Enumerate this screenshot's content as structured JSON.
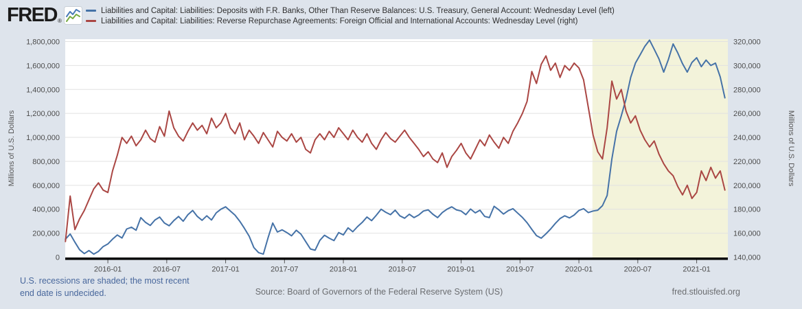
{
  "header": {
    "logo_text": "FRED",
    "logo_registered": "®",
    "logo_icon": "line-chart-icon",
    "logo_icon_colors": {
      "blue": "#4a7bb7",
      "green": "#77aa43"
    },
    "legend": [
      {
        "label": "Liabilities and Capital: Liabilities: Deposits with F.R. Banks, Other Than Reserve Balances: U.S. Treasury, General Account: Wednesday Level (left)",
        "color": "#4572a7"
      },
      {
        "label": "Liabilities and Capital: Liabilities: Reverse Repurchase Agreements: Foreign Official and International Accounts: Wednesday Level (right)",
        "color": "#aa4643"
      }
    ]
  },
  "chart_data": {
    "type": "line",
    "plot_bg": "#ffffff",
    "grid_color": "#e2e2e2",
    "recession_shading": {
      "label": "U.S. recession",
      "start": "2020-02",
      "start_decimal_year": 2020.115,
      "end": "undecided (extends to right edge)",
      "color": "#f3f3da"
    },
    "x_range_decimal_years": [
      2015.638,
      2021.265
    ],
    "x_ticks": [
      {
        "label": "2016-01",
        "x": 2016.0
      },
      {
        "label": "2016-07",
        "x": 2016.5
      },
      {
        "label": "2017-01",
        "x": 2017.0
      },
      {
        "label": "2017-07",
        "x": 2017.5
      },
      {
        "label": "2018-01",
        "x": 2018.0
      },
      {
        "label": "2018-07",
        "x": 2018.5
      },
      {
        "label": "2019-01",
        "x": 2019.0
      },
      {
        "label": "2019-07",
        "x": 2019.5
      },
      {
        "label": "2020-01",
        "x": 2020.0
      },
      {
        "label": "2020-07",
        "x": 2020.5
      },
      {
        "label": "2021-01",
        "x": 2021.0
      }
    ],
    "left_axis": {
      "title": "Millions of U.S. Dollars",
      "min": 0,
      "max": 1800000,
      "step": 200000,
      "labels": [
        "0",
        "200,000",
        "400,000",
        "600,000",
        "800,000",
        "1,000,000",
        "1,200,000",
        "1,400,000",
        "1,600,000",
        "1,800,000"
      ]
    },
    "right_axis": {
      "title": "Millions of U.S. Dollars",
      "min": 140000,
      "max": 320000,
      "step": 20000,
      "labels": [
        "140,000",
        "160,000",
        "180,000",
        "200,000",
        "220,000",
        "240,000",
        "260,000",
        "280,000",
        "300,000",
        "320,000"
      ]
    },
    "series": [
      {
        "name": "Liabilities and Capital: Liabilities: Deposits with F.R. Banks, Other Than Reserve Balances: U.S. Treasury, General Account: Wednesday Level",
        "axis": "left",
        "color": "#4572a7",
        "x_start": 2015.64,
        "x_step": 0.04,
        "values": [
          150000,
          193000,
          125000,
          62000,
          30000,
          55000,
          25000,
          48000,
          88000,
          110000,
          150000,
          185000,
          160000,
          235000,
          250000,
          225000,
          330000,
          290000,
          265000,
          310000,
          335000,
          285000,
          262000,
          305000,
          340000,
          300000,
          355000,
          390000,
          340000,
          308000,
          345000,
          310000,
          370000,
          400000,
          420000,
          385000,
          350000,
          300000,
          240000,
          175000,
          80000,
          38000,
          25000,
          160000,
          285000,
          210000,
          228000,
          205000,
          178000,
          225000,
          192000,
          130000,
          68000,
          58000,
          140000,
          183000,
          158000,
          138000,
          205000,
          186000,
          245000,
          212000,
          255000,
          290000,
          335000,
          305000,
          350000,
          400000,
          375000,
          355000,
          392000,
          345000,
          325000,
          358000,
          330000,
          352000,
          385000,
          395000,
          358000,
          330000,
          372000,
          400000,
          420000,
          395000,
          385000,
          355000,
          402000,
          370000,
          392000,
          340000,
          330000,
          425000,
          395000,
          360000,
          388000,
          405000,
          368000,
          332000,
          288000,
          232000,
          180000,
          158000,
          195000,
          235000,
          282000,
          322000,
          345000,
          328000,
          352000,
          390000,
          405000,
          372000,
          385000,
          392000,
          430000,
          515000,
          820000,
          1050000,
          1180000,
          1320000,
          1500000,
          1620000,
          1690000,
          1760000,
          1812000,
          1735000,
          1655000,
          1545000,
          1650000,
          1780000,
          1705000,
          1615000,
          1545000,
          1625000,
          1665000,
          1590000,
          1645000,
          1600000,
          1620000,
          1505000,
          1330000
        ]
      },
      {
        "name": "Liabilities and Capital: Liabilities: Reverse Repurchase Agreements: Foreign Official and International Accounts: Wednesday Level",
        "axis": "right",
        "color": "#aa4643",
        "x_start": 2015.64,
        "x_step": 0.04,
        "values": [
          153000,
          191000,
          163000,
          172000,
          179000,
          188000,
          197000,
          202000,
          196000,
          194000,
          212000,
          225000,
          240000,
          235000,
          241000,
          233000,
          238000,
          246000,
          239000,
          236000,
          249000,
          241000,
          262000,
          248000,
          241000,
          237000,
          245000,
          252000,
          246000,
          250000,
          243000,
          256000,
          248000,
          252000,
          260000,
          248000,
          243000,
          252000,
          238000,
          246000,
          241000,
          235000,
          244000,
          238000,
          232000,
          245000,
          240000,
          237000,
          243000,
          236000,
          240000,
          230000,
          227000,
          238000,
          243000,
          238000,
          245000,
          240000,
          248000,
          243000,
          238000,
          246000,
          240000,
          236000,
          243000,
          235000,
          230000,
          238000,
          244000,
          239000,
          236000,
          241000,
          246000,
          240000,
          235000,
          230000,
          224000,
          228000,
          222000,
          219000,
          227000,
          215000,
          224000,
          229000,
          235000,
          227000,
          222000,
          230000,
          238000,
          233000,
          242000,
          236000,
          231000,
          240000,
          235000,
          245000,
          252000,
          260000,
          270000,
          295000,
          285000,
          301000,
          308000,
          296000,
          302000,
          290000,
          300000,
          296000,
          302000,
          298000,
          288000,
          265000,
          242000,
          228000,
          222000,
          248000,
          287000,
          272000,
          280000,
          262000,
          252000,
          258000,
          246000,
          238000,
          232000,
          237000,
          226000,
          218000,
          212000,
          208000,
          199000,
          192000,
          200000,
          189000,
          194000,
          212000,
          204000,
          215000,
          206000,
          212000,
          196000
        ]
      }
    ]
  },
  "footer": {
    "note_line1": "U.S. recessions are shaded; the most recent",
    "note_line2": "end date is undecided.",
    "source": "Source: Board of Governors of the Federal Reserve System (US)",
    "site": "fred.stlouisfed.org"
  }
}
